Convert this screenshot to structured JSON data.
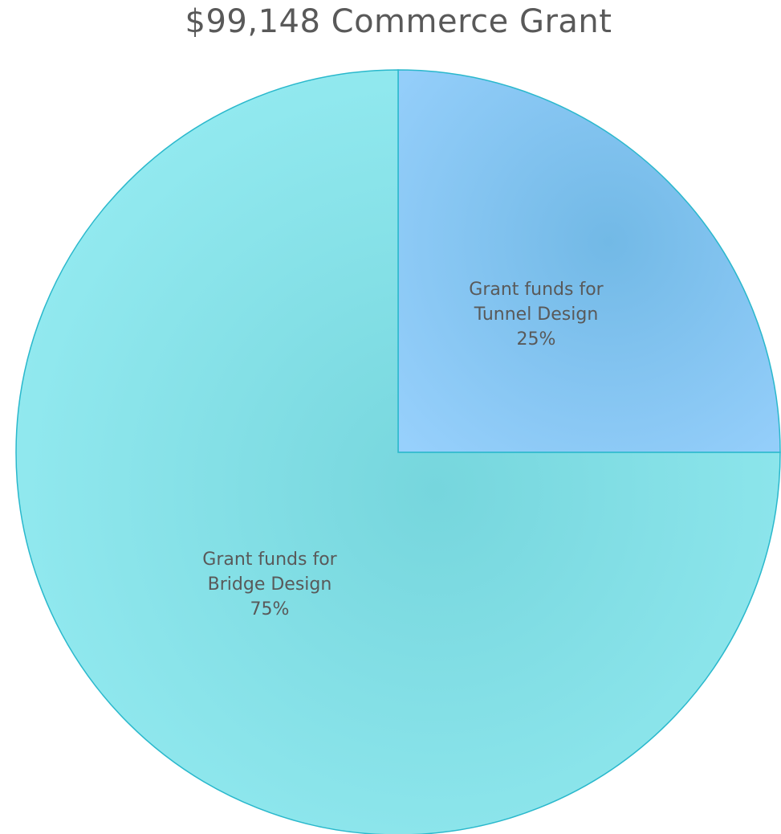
{
  "chart_data": {
    "type": "pie",
    "title": "$99,148 Commerce Grant",
    "slices": [
      {
        "label_lines": [
          "Grant funds for",
          "Tunnel Design"
        ],
        "percent_label": "25%",
        "value": 25,
        "color_center": "#72b9e6",
        "color_edge": "#97d0fc"
      },
      {
        "label_lines": [
          "Grant funds for",
          "Bridge Design"
        ],
        "percent_label": "75%",
        "value": 75,
        "color_center": "#76d6dd",
        "color_edge": "#93eaf0"
      }
    ],
    "slice_border_color": "#2ab8cc",
    "legend": "none"
  }
}
